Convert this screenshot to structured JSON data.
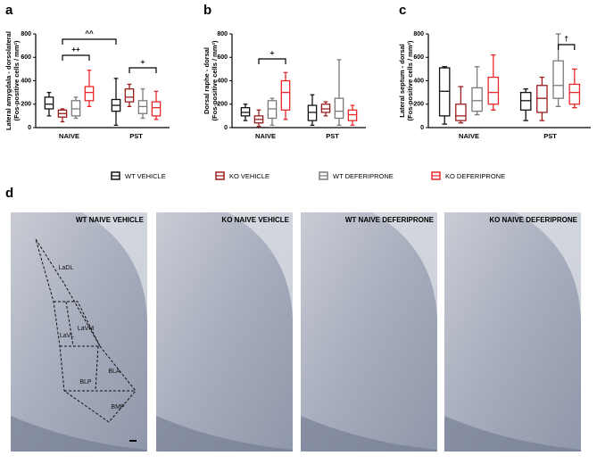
{
  "chart_data": [
    {
      "type": "box",
      "label": "a",
      "ylabel": [
        "Lateral amygdala - dorsolateral",
        "(Fos-positive cells / mm²)"
      ],
      "categories": [
        "NAIVE",
        "PST"
      ],
      "ylim": [
        0,
        800
      ],
      "yticks": [
        0,
        200,
        400,
        600,
        800
      ],
      "annotations": [
        "++",
        "^^",
        "+"
      ],
      "series": [
        {
          "name": "WT VEHICLE",
          "color": "#111111",
          "values": [
            {
              "min": 100,
              "q1": 160,
              "median": 200,
              "q3": 260,
              "max": 300
            },
            {
              "min": 20,
              "q1": 140,
              "median": 190,
              "q3": 240,
              "max": 420
            }
          ]
        },
        {
          "name": "KO VEHICLE",
          "color": "#9b1c1c",
          "values": [
            {
              "min": 50,
              "q1": 90,
              "median": 120,
              "q3": 150,
              "max": 160
            },
            {
              "min": 180,
              "q1": 220,
              "median": 260,
              "q3": 330,
              "max": 370
            }
          ]
        },
        {
          "name": "WT DEFERIPRONE",
          "color": "#7a7a7a",
          "values": [
            {
              "min": 80,
              "q1": 100,
              "median": 160,
              "q3": 230,
              "max": 260
            },
            {
              "min": 80,
              "q1": 120,
              "median": 180,
              "q3": 230,
              "max": 330
            }
          ]
        },
        {
          "name": "KO DEFERIPRONE",
          "color": "#e8282b",
          "values": [
            {
              "min": 180,
              "q1": 230,
              "median": 300,
              "q3": 350,
              "max": 490
            },
            {
              "min": 70,
              "q1": 100,
              "median": 170,
              "q3": 220,
              "max": 310
            }
          ]
        }
      ]
    },
    {
      "type": "box",
      "label": "b",
      "ylabel": [
        "Dorsal raphe - dorsal",
        "(Fos-positive cells / mm²)"
      ],
      "categories": [
        "NAIVE",
        "PST"
      ],
      "ylim": [
        0,
        800
      ],
      "yticks": [
        0,
        200,
        400,
        600,
        800
      ],
      "annotations": [
        "+"
      ],
      "series": [
        {
          "name": "WT VEHICLE",
          "color": "#111111",
          "values": [
            {
              "min": 60,
              "q1": 100,
              "median": 130,
              "q3": 170,
              "max": 200
            },
            {
              "min": 20,
              "q1": 60,
              "median": 130,
              "q3": 190,
              "max": 280
            }
          ]
        },
        {
          "name": "KO VEHICLE",
          "color": "#9b1c1c",
          "values": [
            {
              "min": 10,
              "q1": 40,
              "median": 70,
              "q3": 100,
              "max": 150
            },
            {
              "min": 100,
              "q1": 130,
              "median": 160,
              "q3": 200,
              "max": 220
            }
          ]
        },
        {
          "name": "WT DEFERIPRONE",
          "color": "#7a7a7a",
          "values": [
            {
              "min": 20,
              "q1": 80,
              "median": 160,
              "q3": 230,
              "max": 250
            },
            {
              "min": 20,
              "q1": 80,
              "median": 140,
              "q3": 250,
              "max": 580
            }
          ]
        },
        {
          "name": "KO DEFERIPRONE",
          "color": "#e8282b",
          "values": [
            {
              "min": 70,
              "q1": 150,
              "median": 300,
              "q3": 400,
              "max": 470
            },
            {
              "min": 20,
              "q1": 60,
              "median": 110,
              "q3": 150,
              "max": 190
            }
          ]
        }
      ]
    },
    {
      "type": "box",
      "label": "c",
      "ylabel": [
        "Lateral septum - dorsal",
        "(Fos-positive cells / mm²)"
      ],
      "categories": [
        "NAIVE",
        "PST"
      ],
      "ylim": [
        0,
        800
      ],
      "yticks": [
        0,
        200,
        400,
        600,
        800
      ],
      "annotations": [
        "†"
      ],
      "series": [
        {
          "name": "WT VEHICLE",
          "color": "#111111",
          "values": [
            {
              "min": 30,
              "q1": 100,
              "median": 310,
              "q3": 510,
              "max": 520
            },
            {
              "min": 60,
              "q1": 150,
              "median": 230,
              "q3": 300,
              "max": 330
            }
          ]
        },
        {
          "name": "KO VEHICLE",
          "color": "#9b1c1c",
          "values": [
            {
              "min": 40,
              "q1": 60,
              "median": 100,
              "q3": 200,
              "max": 350
            },
            {
              "min": 60,
              "q1": 130,
              "median": 250,
              "q3": 360,
              "max": 430
            }
          ]
        },
        {
          "name": "WT DEFERIPRONE",
          "color": "#7a7a7a",
          "values": [
            {
              "min": 110,
              "q1": 140,
              "median": 230,
              "q3": 340,
              "max": 520
            },
            {
              "min": 180,
              "q1": 250,
              "median": 360,
              "q3": 570,
              "max": 800
            }
          ]
        },
        {
          "name": "KO DEFERIPRONE",
          "color": "#e8282b",
          "values": [
            {
              "min": 150,
              "q1": 200,
              "median": 300,
              "q3": 430,
              "max": 620
            },
            {
              "min": 170,
              "q1": 200,
              "median": 300,
              "q3": 370,
              "max": 500
            }
          ]
        }
      ]
    }
  ],
  "micrographs": {
    "label": "d",
    "panels": [
      "WT NAIVE VEHICLE",
      "KO NAIVE VEHICLE",
      "WT NAIVE DEFERIPRONE",
      "KO NAIVE DEFERIPRONE"
    ],
    "regions": [
      "LaDL",
      "LaVL",
      "LaVM",
      "BLP",
      "BLA",
      "BMP"
    ]
  }
}
